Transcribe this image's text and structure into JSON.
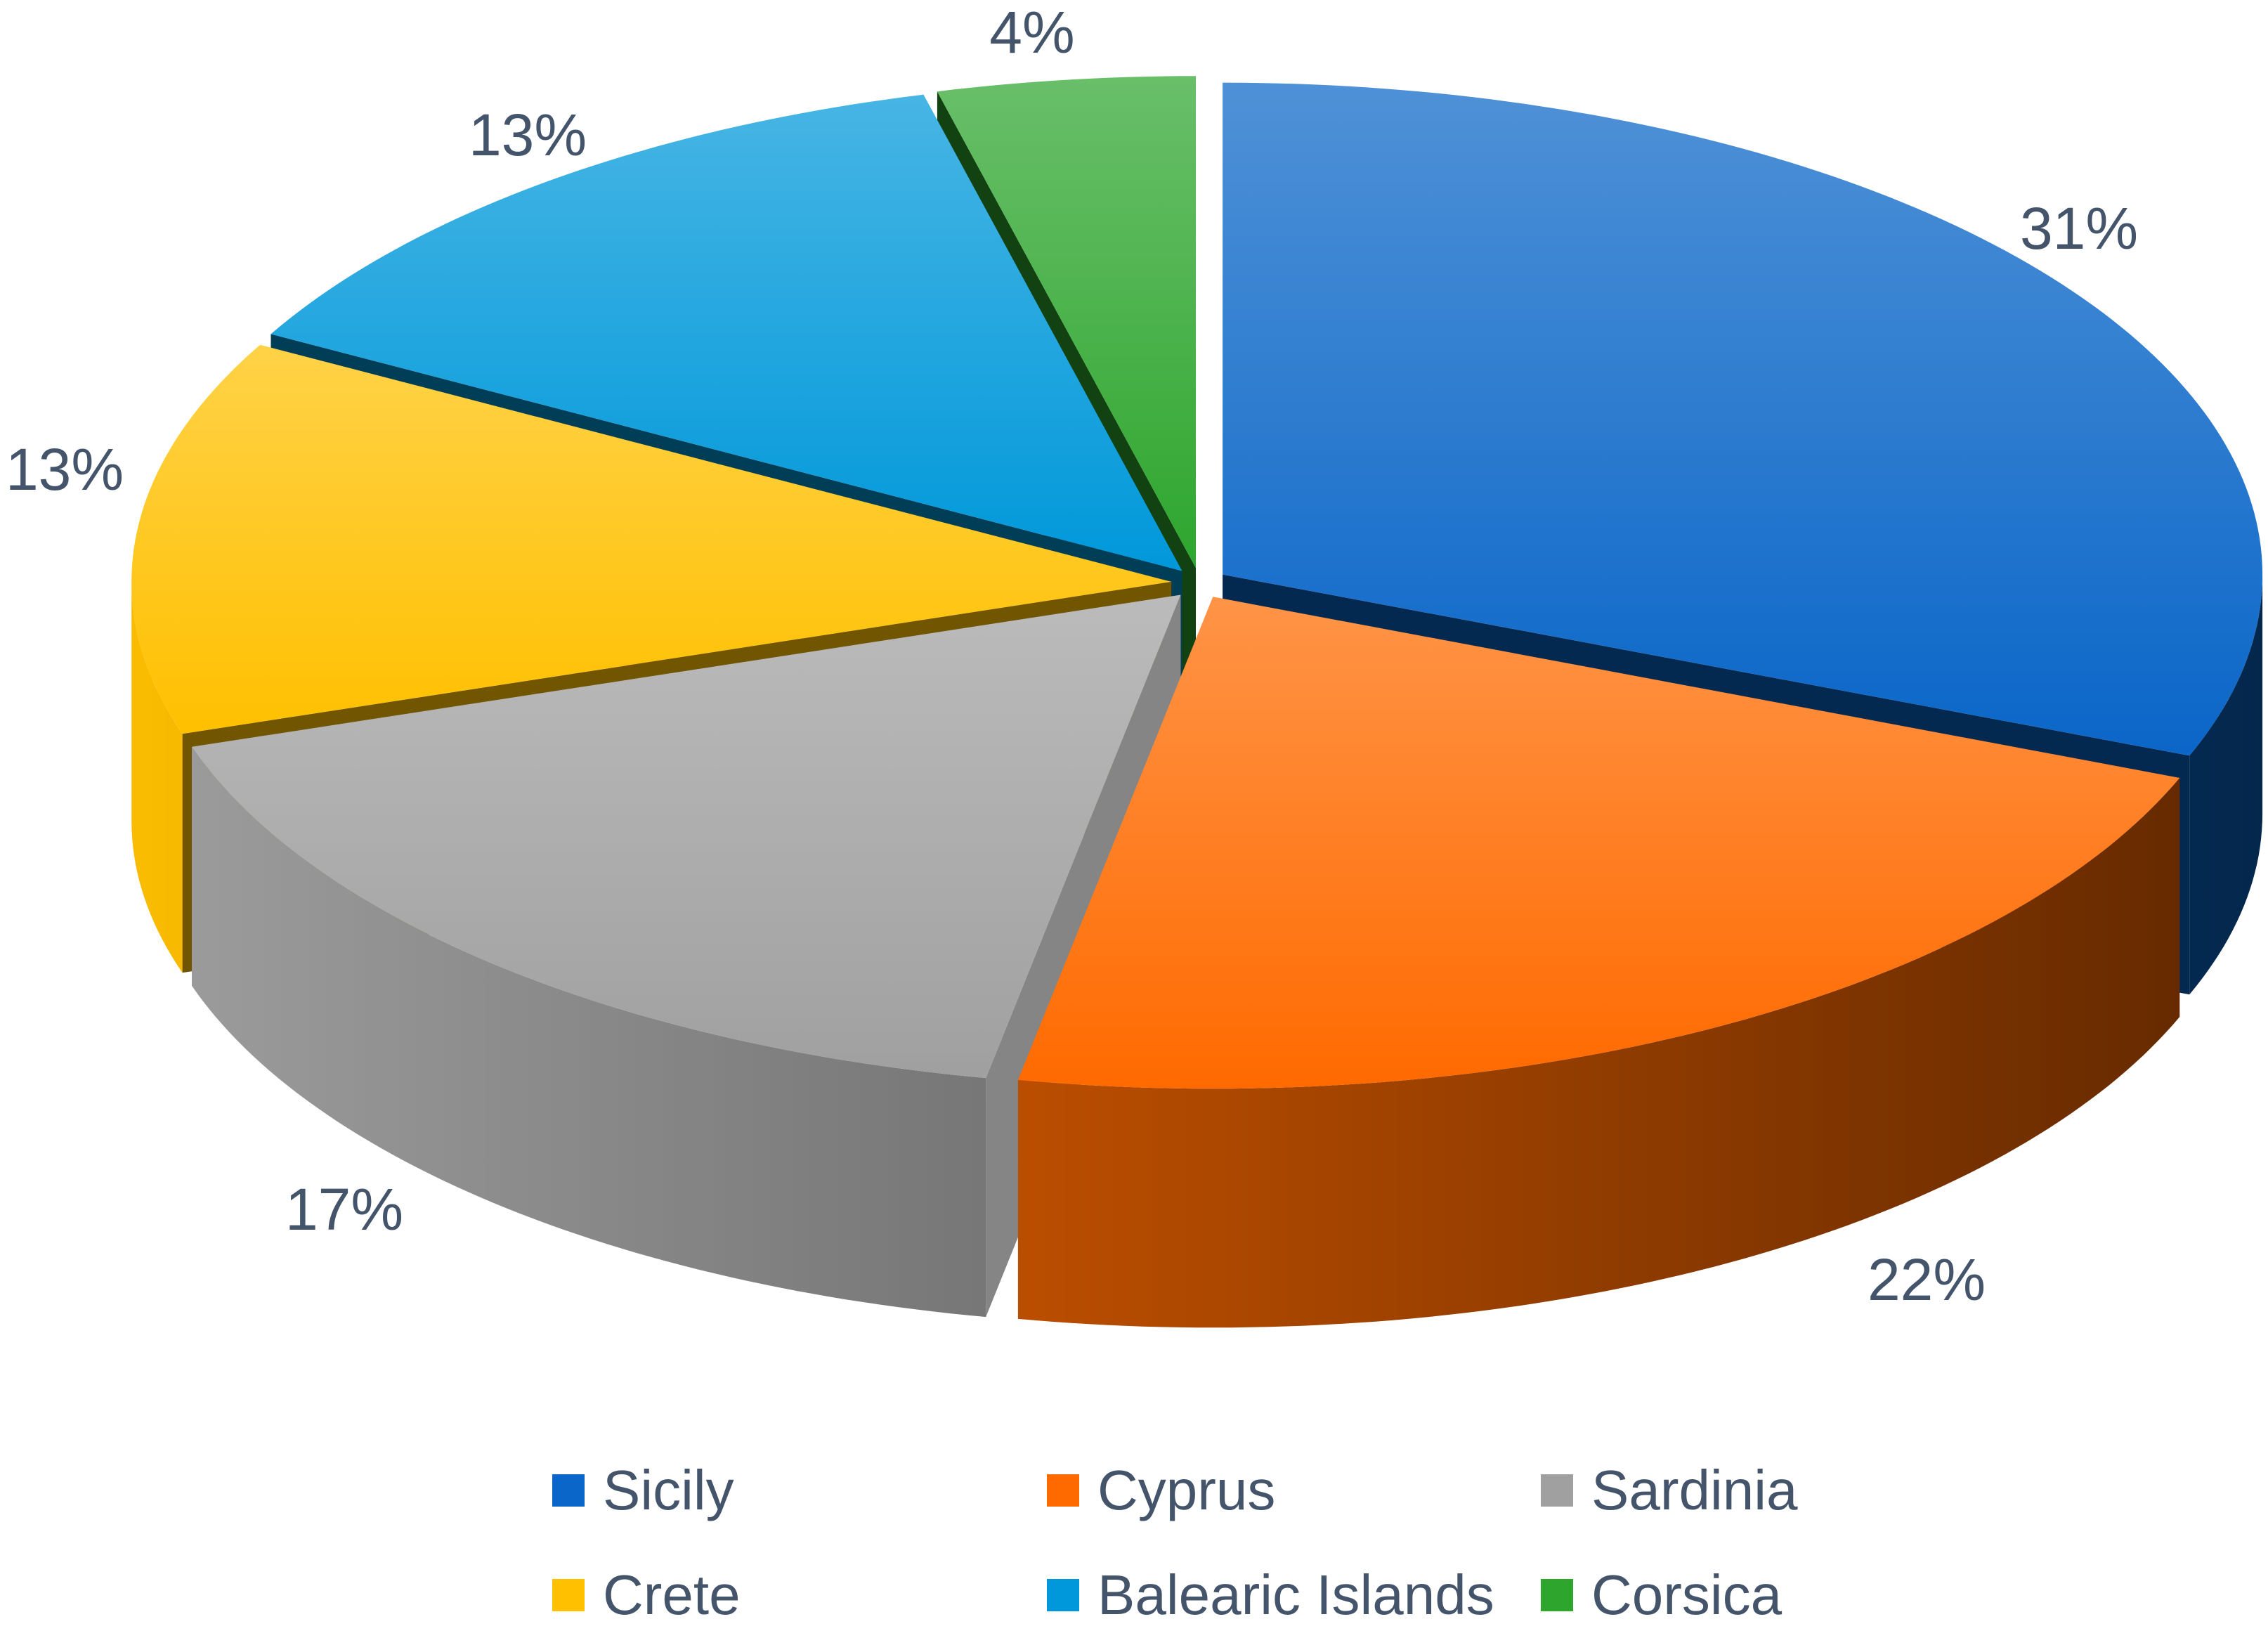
{
  "chart_data": {
    "type": "pie",
    "three_d": true,
    "categories": [
      "Sicily",
      "Cyprus",
      "Sardinia",
      "Crete",
      "Balearic Islands",
      "Corsica"
    ],
    "values": [
      31,
      22,
      17,
      13,
      13,
      4
    ],
    "labels": [
      "31%",
      "22%",
      "17%",
      "13%",
      "13%",
      "4%"
    ],
    "colors": [
      "#0a66c8",
      "#ff6a00",
      "#a0a0a0",
      "#ffc000",
      "#0098da",
      "#2ea62e"
    ],
    "legend": "bottom"
  }
}
